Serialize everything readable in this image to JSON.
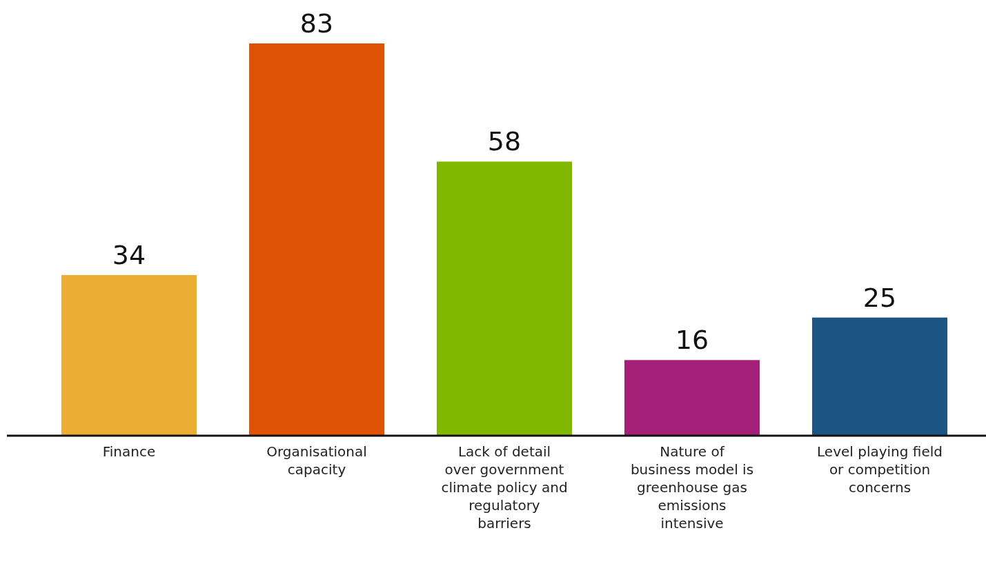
{
  "chart_data": {
    "type": "bar",
    "categories": [
      "Finance",
      "Organisational capacity",
      "Lack of detail over government climate policy and regulatory barriers",
      "Nature of business model is greenhouse gas emissions intensive",
      "Level playing field or competition concerns"
    ],
    "values": [
      34,
      83,
      58,
      16,
      25
    ],
    "colors": [
      "#ecad35",
      "#e05206",
      "#80b800",
      "#a31f78",
      "#1b5584"
    ],
    "data_labels": true
  }
}
